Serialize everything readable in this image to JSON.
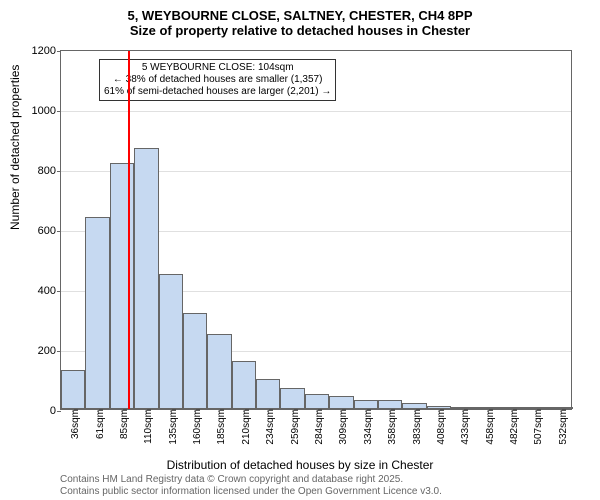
{
  "title": {
    "line1": "5, WEYBOURNE CLOSE, SALTNEY, CHESTER, CH4 8PP",
    "line2": "Size of property relative to detached houses in Chester"
  },
  "chart": {
    "type": "histogram",
    "ylabel": "Number of detached properties",
    "xlabel": "Distribution of detached houses by size in Chester",
    "ylim": [
      0,
      1200
    ],
    "ytick_step": 200,
    "xticks": [
      "36sqm",
      "61sqm",
      "85sqm",
      "110sqm",
      "135sqm",
      "160sqm",
      "185sqm",
      "210sqm",
      "234sqm",
      "259sqm",
      "284sqm",
      "309sqm",
      "334sqm",
      "358sqm",
      "383sqm",
      "408sqm",
      "433sqm",
      "458sqm",
      "482sqm",
      "507sqm",
      "532sqm"
    ],
    "bar_values": [
      130,
      640,
      820,
      870,
      450,
      320,
      250,
      160,
      100,
      70,
      50,
      45,
      30,
      30,
      20,
      10,
      5,
      5,
      2,
      2,
      1
    ],
    "bar_color": "#c6d9f1",
    "bar_border": "#666666",
    "background_color": "#ffffff",
    "grid_color": "#666666",
    "marker": {
      "position_index": 2.75,
      "color": "#ff0000"
    }
  },
  "annotation": {
    "line1": "5 WEYBOURNE CLOSE: 104sqm",
    "line2": "← 38% of detached houses are smaller (1,357)",
    "line3": "61% of semi-detached houses are larger (2,201) →"
  },
  "footer": {
    "line1": "Contains HM Land Registry data © Crown copyright and database right 2025.",
    "line2": "Contains public sector information licensed under the Open Government Licence v3.0."
  }
}
